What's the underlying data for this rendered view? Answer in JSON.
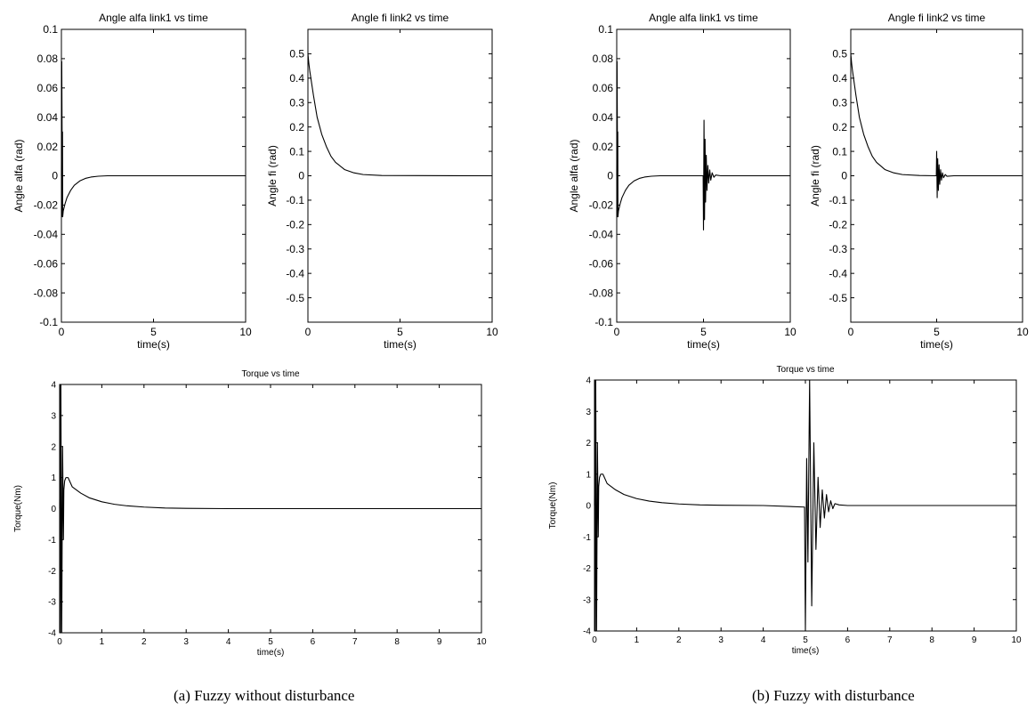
{
  "captions": {
    "a": "(a)   Fuzzy without disturbance",
    "b": "(b) Fuzzy with disturbance"
  },
  "chart_data": [
    {
      "id": "a-alfa",
      "type": "line",
      "title": "Angle alfa link1 vs time",
      "xlabel": "time(s)",
      "ylabel": "Angle alfa (rad)",
      "xlim": [
        0,
        10
      ],
      "ylim": [
        -0.1,
        0.1
      ],
      "xticks": [
        "0",
        "5",
        "10"
      ],
      "yticks": [
        "-0.1",
        "-0.08",
        "-0.06",
        "-0.04",
        "-0.02",
        "0",
        "0.02",
        "0.04",
        "0.06",
        "0.08",
        "0.1"
      ],
      "series": [
        {
          "x": [
            0,
            0.02,
            0.04,
            0.05,
            0.06,
            0.07,
            0.1,
            0.2,
            0.3,
            0.5,
            0.7,
            1.0,
            1.3,
            1.6,
            2.0,
            2.5,
            3,
            10
          ],
          "y": [
            0,
            0.078,
            0.02,
            -0.028,
            0.03,
            -0.028,
            -0.024,
            -0.019,
            -0.015,
            -0.01,
            -0.0065,
            -0.0035,
            -0.0018,
            -0.0009,
            -0.0003,
            0,
            0,
            0
          ]
        }
      ]
    },
    {
      "id": "a-fi",
      "type": "line",
      "title": "Angle fi link2 vs time",
      "xlabel": "time(s)",
      "ylabel": "Angle fi (rad)",
      "xlim": [
        0,
        10
      ],
      "ylim": [
        -0.6,
        0.6
      ],
      "xticks": [
        "0",
        "5",
        "10"
      ],
      "yticks": [
        "-0.5",
        "-0.4",
        "-0.3",
        "-0.2",
        "-0.1",
        "0",
        "0.1",
        "0.2",
        "0.3",
        "0.4",
        "0.5"
      ],
      "series": [
        {
          "x": [
            0,
            0.05,
            0.1,
            0.3,
            0.5,
            0.75,
            1.0,
            1.25,
            1.5,
            2.0,
            2.5,
            3.0,
            4.0,
            10
          ],
          "y": [
            0.5,
            0.46,
            0.43,
            0.33,
            0.24,
            0.17,
            0.12,
            0.08,
            0.055,
            0.025,
            0.012,
            0.005,
            0.001,
            0
          ]
        }
      ]
    },
    {
      "id": "a-torque",
      "type": "line",
      "title": "Torque vs time",
      "xlabel": "time(s)",
      "ylabel": "Torque(Nm)",
      "xlim": [
        0,
        10
      ],
      "ylim": [
        -4,
        4
      ],
      "xticks": [
        "0",
        "1",
        "2",
        "3",
        "4",
        "5",
        "6",
        "7",
        "8",
        "9",
        "10"
      ],
      "yticks": [
        "-4",
        "-3",
        "-2",
        "-1",
        "0",
        "1",
        "2",
        "3",
        "4"
      ],
      "series": [
        {
          "x": [
            0,
            0.01,
            0.02,
            0.03,
            0.05,
            0.07,
            0.09,
            0.1,
            0.12,
            0.15,
            0.2,
            0.3,
            0.5,
            0.7,
            1.0,
            1.3,
            1.6,
            2.0,
            2.5,
            3.0,
            4.0,
            10
          ],
          "y": [
            0,
            4,
            -4,
            4,
            -4,
            2,
            -1,
            0.6,
            0.9,
            1.0,
            1.0,
            0.7,
            0.5,
            0.35,
            0.22,
            0.14,
            0.09,
            0.05,
            0.02,
            0.01,
            0,
            0
          ]
        }
      ]
    },
    {
      "id": "b-alfa",
      "type": "line",
      "title": "Angle alfa link1 vs time",
      "xlabel": "time(s)",
      "ylabel": "Angle alfa (rad)",
      "xlim": [
        0,
        10
      ],
      "ylim": [
        -0.1,
        0.1
      ],
      "xticks": [
        "0",
        "5",
        "10"
      ],
      "yticks": [
        "-0.1",
        "-0.08",
        "-0.06",
        "-0.04",
        "-0.02",
        "0",
        "0.02",
        "0.04",
        "0.06",
        "0.08",
        "0.1"
      ],
      "series": [
        {
          "x": [
            0,
            0.02,
            0.04,
            0.05,
            0.06,
            0.07,
            0.1,
            0.2,
            0.3,
            0.5,
            0.7,
            1.0,
            1.3,
            1.6,
            2.0,
            2.5,
            3,
            4.98,
            5.0,
            5.03,
            5.06,
            5.09,
            5.12,
            5.16,
            5.2,
            5.25,
            5.3,
            5.36,
            5.42,
            5.5,
            5.6,
            5.7,
            6.0,
            10
          ],
          "y": [
            0,
            0.078,
            0.02,
            -0.028,
            0.03,
            -0.028,
            -0.024,
            -0.019,
            -0.015,
            -0.01,
            -0.0065,
            -0.0035,
            -0.0018,
            -0.0009,
            -0.0003,
            0,
            0,
            0,
            -0.037,
            0.038,
            -0.03,
            0.025,
            -0.018,
            0.014,
            -0.01,
            0.007,
            -0.005,
            0.004,
            -0.003,
            0.002,
            -0.001,
            0.0005,
            0,
            0
          ]
        }
      ]
    },
    {
      "id": "b-fi",
      "type": "line",
      "title": "Angle fi link2 vs time",
      "xlabel": "time(s)",
      "ylabel": "Angle fi (rad)",
      "xlim": [
        0,
        10
      ],
      "ylim": [
        -0.6,
        0.6
      ],
      "xticks": [
        "0",
        "5",
        "10"
      ],
      "yticks": [
        "-0.5",
        "-0.4",
        "-0.3",
        "-0.2",
        "-0.1",
        "0",
        "0.1",
        "0.2",
        "0.3",
        "0.4",
        "0.5"
      ],
      "series": [
        {
          "x": [
            0,
            0.05,
            0.1,
            0.3,
            0.5,
            0.75,
            1.0,
            1.25,
            1.5,
            2.0,
            2.5,
            3.0,
            4.0,
            4.98,
            5.0,
            5.03,
            5.06,
            5.1,
            5.14,
            5.18,
            5.23,
            5.28,
            5.34,
            5.4,
            5.5,
            5.6,
            6.0,
            10
          ],
          "y": [
            0.5,
            0.46,
            0.43,
            0.33,
            0.24,
            0.17,
            0.12,
            0.08,
            0.055,
            0.025,
            0.012,
            0.005,
            0.001,
            0,
            0.1,
            -0.09,
            0.07,
            -0.06,
            0.045,
            -0.035,
            0.025,
            -0.018,
            0.012,
            -0.008,
            0.005,
            -0.002,
            0,
            0
          ]
        }
      ]
    },
    {
      "id": "b-torque",
      "type": "line",
      "title": "Torque vs time",
      "xlabel": "time(s)",
      "ylabel": "Torque(Nm)",
      "xlim": [
        0,
        10
      ],
      "ylim": [
        -4,
        4
      ],
      "xticks": [
        "0",
        "1",
        "2",
        "3",
        "4",
        "5",
        "6",
        "7",
        "8",
        "9",
        "10"
      ],
      "yticks": [
        "-4",
        "-3",
        "-2",
        "-1",
        "0",
        "1",
        "2",
        "3",
        "4"
      ],
      "series": [
        {
          "x": [
            0,
            0.01,
            0.02,
            0.03,
            0.05,
            0.07,
            0.09,
            0.1,
            0.12,
            0.15,
            0.2,
            0.3,
            0.5,
            0.7,
            1.0,
            1.3,
            1.6,
            2.0,
            2.5,
            3.0,
            4.0,
            4.98,
            5.0,
            5.03,
            5.06,
            5.1,
            5.15,
            5.2,
            5.25,
            5.3,
            5.35,
            5.4,
            5.45,
            5.5,
            5.55,
            5.6,
            5.65,
            5.7,
            5.8,
            6.0,
            10
          ],
          "y": [
            0,
            4,
            -4,
            4,
            -4,
            2,
            -1,
            0.6,
            0.9,
            1.0,
            1.0,
            0.7,
            0.5,
            0.35,
            0.22,
            0.14,
            0.09,
            0.05,
            0.02,
            0.01,
            0,
            -0.05,
            -4,
            1.5,
            -1.8,
            4,
            -3.2,
            2.0,
            -1.4,
            0.9,
            -0.7,
            0.5,
            -0.4,
            0.35,
            -0.2,
            0.15,
            -0.1,
            0.06,
            0.02,
            0,
            0
          ]
        }
      ]
    }
  ]
}
